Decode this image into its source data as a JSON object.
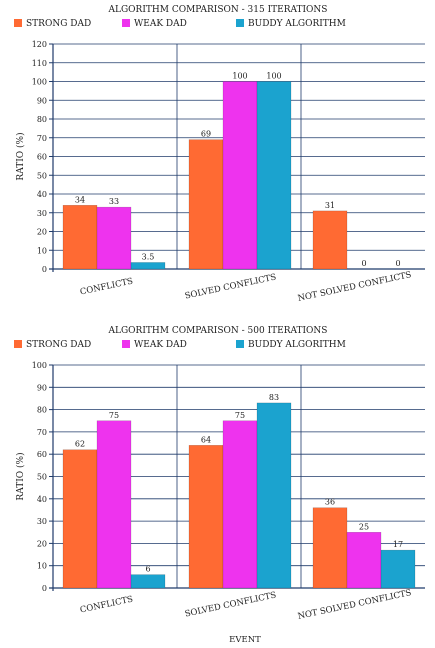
{
  "colors": {
    "strong": "#ff6a33",
    "weak": "#ee33ee",
    "buddy": "#1ba3cf",
    "axis": "#1f3a6a",
    "grid": "#1f3a6a"
  },
  "shared_xlabel": "EVENT",
  "chart_data": [
    {
      "type": "bar",
      "title": "ALGORITHM COMPARISON - 315 ITERATIONS",
      "xlabel": "",
      "ylabel": "RATIO (%)",
      "ylim": [
        0,
        120
      ],
      "ytick_step": 10,
      "grid": true,
      "legend_position": "top",
      "categories": [
        "CONFLICTS",
        "SOLVED CONFLICTS",
        "NOT SOLVED CONFLICTS"
      ],
      "series": [
        {
          "name": "STRONG DAD",
          "color_key": "strong",
          "values": [
            34,
            69,
            31
          ],
          "labels": [
            "34",
            "69",
            "31"
          ]
        },
        {
          "name": "WEAK DAD",
          "color_key": "weak",
          "values": [
            33,
            100,
            0
          ],
          "labels": [
            "33",
            "100",
            "0"
          ]
        },
        {
          "name": "BUDDY ALGORITHM",
          "color_key": "buddy",
          "values": [
            3.5,
            100,
            0
          ],
          "labels": [
            "3.5",
            "100",
            "0"
          ]
        }
      ]
    },
    {
      "type": "bar",
      "title": "ALGORITHM COMPARISON - 500 ITERATIONS",
      "xlabel": "EVENT",
      "ylabel": "RATIO (%)",
      "ylim": [
        0,
        100
      ],
      "ytick_step": 10,
      "grid": true,
      "legend_position": "top",
      "categories": [
        "CONFLICTS",
        "SOLVED CONFLICTS",
        "NOT SOLVED CONFLICTS"
      ],
      "series": [
        {
          "name": "STRONG DAD",
          "color_key": "strong",
          "values": [
            62,
            64,
            36
          ],
          "labels": [
            "62",
            "64",
            "36"
          ]
        },
        {
          "name": "WEAK DAD",
          "color_key": "weak",
          "values": [
            75,
            75,
            25
          ],
          "labels": [
            "75",
            "75",
            "25"
          ]
        },
        {
          "name": "BUDDY ALGORITHM",
          "color_key": "buddy",
          "values": [
            6,
            83,
            17
          ],
          "labels": [
            "6",
            "83",
            "17"
          ]
        }
      ]
    }
  ]
}
